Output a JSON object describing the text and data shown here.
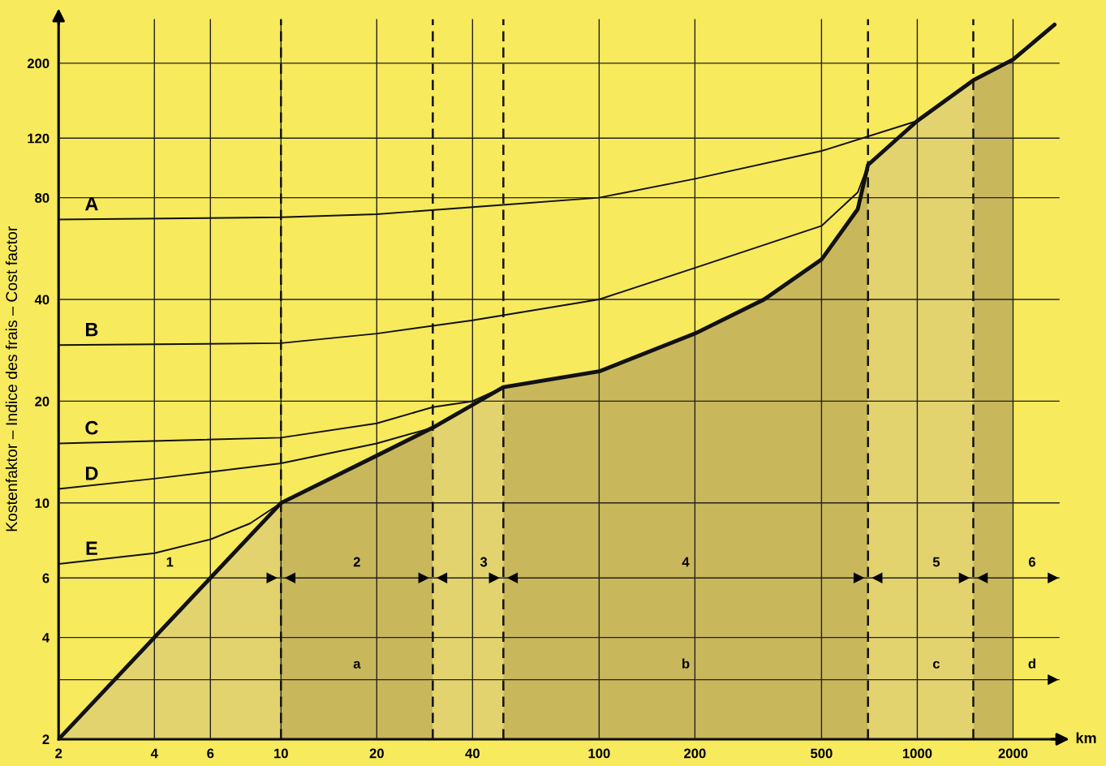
{
  "chart_data": {
    "type": "line",
    "ylabel": "Kostenfaktor – Indice des frais – Cost factor",
    "xlabel": "km",
    "log": "xy",
    "xlim": [
      2,
      2800
    ],
    "ylim": [
      2,
      270
    ],
    "xticks": [
      2,
      4,
      6,
      10,
      20,
      40,
      100,
      200,
      500,
      1000,
      2000
    ],
    "yticks": [
      2,
      {
        "value": 3,
        "label": null
      },
      4,
      6,
      10,
      20,
      40,
      80,
      120,
      200
    ],
    "grid": true,
    "series": [
      {
        "type": "area",
        "color": "#e2d36e",
        "x": [
          2,
          10
        ],
        "values": [
          2,
          10
        ]
      },
      {
        "type": "area",
        "color": "#c9b75c",
        "x": [
          10,
          20,
          30
        ],
        "values": [
          10,
          13.8,
          16.7
        ]
      },
      {
        "type": "area",
        "color": "#e2d36e",
        "x": [
          30,
          40,
          50
        ],
        "values": [
          16.7,
          19.5,
          22
        ]
      },
      {
        "type": "area",
        "color": "#c9b75c",
        "x": [
          50,
          100,
          200,
          330,
          500,
          650,
          700
        ],
        "values": [
          22,
          24.5,
          31.7,
          40,
          52.5,
          74,
          100
        ]
      },
      {
        "type": "area",
        "color": "#e2d36e",
        "x": [
          700,
          1000,
          1500
        ],
        "values": [
          100,
          135,
          178
        ]
      },
      {
        "type": "area",
        "color": "#c9b75c",
        "x": [
          1500,
          2000
        ],
        "values": [
          178,
          205
        ]
      },
      {
        "name": "A",
        "color": "#111111",
        "x": [
          2,
          10,
          20,
          40,
          100,
          200,
          500,
          1000,
          1500
        ],
        "values": [
          69,
          70,
          71.5,
          75,
          80,
          91,
          110,
          135,
          178
        ]
      },
      {
        "name": "B",
        "color": "#111111",
        "x": [
          2,
          10,
          20,
          40,
          100,
          200,
          500,
          650,
          700
        ],
        "values": [
          29.3,
          29.7,
          31.7,
          34.7,
          40,
          49.6,
          66,
          83,
          100
        ]
      },
      {
        "name": "C",
        "color": "#111111",
        "x": [
          2,
          10,
          20,
          30,
          40,
          50
        ],
        "values": [
          15,
          15.6,
          17.2,
          19.2,
          20,
          22
        ]
      },
      {
        "name": "D",
        "color": "#111111",
        "x": [
          2,
          4,
          10,
          20,
          30
        ],
        "values": [
          11,
          11.8,
          13.1,
          15,
          16.7
        ]
      },
      {
        "name": "E",
        "color": "#111111",
        "x": [
          2,
          4,
          6,
          8,
          10
        ],
        "values": [
          6.6,
          7.1,
          7.8,
          8.7,
          10
        ]
      },
      {
        "color": "#111111",
        "x": [
          2,
          10,
          20,
          30,
          40,
          50,
          100,
          200,
          330,
          500,
          650,
          700,
          1000,
          1500,
          2000,
          2700
        ],
        "values": [
          2,
          10,
          13.8,
          16.7,
          19.5,
          22,
          24.5,
          31.7,
          40,
          52.5,
          74,
          100,
          135,
          178,
          205,
          260
        ]
      }
    ],
    "ref_lines": [
      {
        "axis": "x",
        "value": 10,
        "line_style": "dashed"
      },
      {
        "axis": "x",
        "value": 30,
        "line_style": "dashed"
      },
      {
        "axis": "x",
        "value": 50,
        "line_style": "dashed"
      },
      {
        "axis": "x",
        "value": 700,
        "line_style": "dashed"
      },
      {
        "axis": "x",
        "value": 1500,
        "line_style": "dashed"
      }
    ],
    "annotations": [
      "1",
      "2",
      "3",
      "4",
      "5",
      "6",
      "a",
      "b",
      "c",
      "d"
    ]
  }
}
